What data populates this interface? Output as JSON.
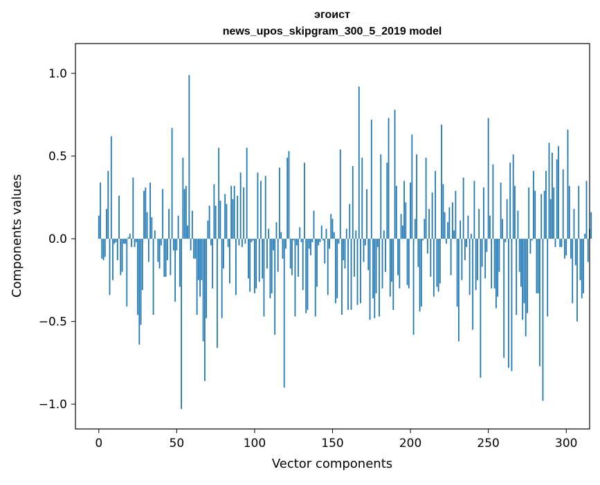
{
  "chart_data": {
    "type": "bar",
    "title": "эгоист",
    "subtitle": "news_upos_skipgram_300_5_2019 model",
    "xlabel": "Vector components",
    "ylabel": "Components values",
    "xlim": [
      -15,
      315
    ],
    "ylim": [
      -1.15,
      1.18
    ],
    "x_ticks": [
      0,
      50,
      100,
      150,
      200,
      250,
      300
    ],
    "x_tick_labels": [
      "0",
      "50",
      "100",
      "150",
      "200",
      "250",
      "300"
    ],
    "y_ticks": [
      1.0,
      0.5,
      0.0,
      -0.5,
      -1.0
    ],
    "y_tick_labels": [
      "1.0",
      "0.5",
      "0.0",
      "−0.5",
      "−1.0"
    ],
    "bar_color": "#1f77b4",
    "grid": false,
    "values": [
      0.14,
      0.34,
      -0.12,
      -0.13,
      -0.11,
      0.18,
      0.41,
      -0.34,
      0.62,
      -0.25,
      -0.03,
      -0.02,
      -0.13,
      0.26,
      -0.22,
      -0.2,
      -0.03,
      -0.03,
      -0.41,
      0.01,
      0.03,
      -0.05,
      0.37,
      -0.05,
      -0.02,
      -0.46,
      -0.64,
      -0.52,
      -0.31,
      0.29,
      0.31,
      0.16,
      -0.14,
      0.34,
      0.13,
      -0.46,
      0.05,
      0.0,
      -0.14,
      -0.18,
      -0.04,
      0.3,
      -0.23,
      -0.23,
      -0.13,
      0.18,
      -0.22,
      0.67,
      -0.07,
      -0.38,
      -0.07,
      0.14,
      -0.29,
      -1.03,
      0.49,
      0.3,
      0.32,
      0.08,
      0.99,
      -0.07,
      0.17,
      -0.12,
      -0.12,
      -0.46,
      -0.25,
      -0.35,
      -0.25,
      -0.62,
      -0.86,
      -0.48,
      0.11,
      0.2,
      -0.04,
      -0.3,
      0.33,
      0.2,
      -0.66,
      0.55,
      0.23,
      -0.48,
      -0.18,
      0.27,
      0.21,
      -0.05,
      -0.27,
      0.32,
      0.24,
      0.32,
      -0.34,
      0.26,
      -0.04,
      0.4,
      -0.05,
      0.31,
      -0.03,
      0.55,
      -0.24,
      -0.32,
      -0.02,
      -0.01,
      -0.33,
      -0.3,
      0.4,
      -0.26,
      0.35,
      -0.24,
      -0.47,
      0.38,
      -0.18,
      0.06,
      -0.36,
      -0.33,
      -0.07,
      -0.58,
      0.1,
      -0.2,
      0.43,
      0.04,
      -0.12,
      -0.9,
      -0.06,
      0.49,
      0.53,
      -0.18,
      -0.22,
      -0.01,
      -0.47,
      -0.04,
      -0.23,
      0.07,
      -0.02,
      -0.31,
      0.46,
      -0.45,
      -0.43,
      -0.06,
      -0.1,
      -0.02,
      0.17,
      -0.47,
      -0.29,
      -0.04,
      -0.02,
      0.08,
      -0.01,
      -0.15,
      0.06,
      -0.34,
      -0.06,
      0.15,
      0.12,
      0.04,
      -0.39,
      -0.36,
      -0.03,
      0.54,
      -0.46,
      -0.13,
      -0.18,
      0.06,
      -0.43,
      0.21,
      -0.43,
      0.44,
      -0.23,
      0.05,
      -0.4,
      0.92,
      -0.39,
      0.49,
      -0.14,
      -0.04,
      0.3,
      -0.19,
      -0.49,
      0.72,
      -0.36,
      -0.48,
      -0.33,
      -0.05,
      -0.47,
      0.51,
      -0.3,
      0.05,
      -0.2,
      0.46,
      0.73,
      -0.35,
      -0.26,
      -0.43,
      0.78,
      0.32,
      -0.22,
      -0.3,
      0.15,
      0.08,
      0.35,
      0.22,
      -0.28,
      -0.3,
      0.34,
      0.63,
      -0.58,
      0.12,
      0.51,
      -0.17,
      -0.44,
      -0.41,
      -0.01,
      0.12,
      0.49,
      -0.09,
      0.18,
      -0.23,
      0.28,
      -0.35,
      0.41,
      -0.29,
      -0.32,
      -0.27,
      0.69,
      0.33,
      0.16,
      -0.03,
      0.1,
      0.19,
      -0.22,
      0.22,
      0.05,
      0.29,
      -0.41,
      -0.62,
      0.11,
      -0.25,
      0.37,
      -0.13,
      -0.05,
      0.14,
      -0.34,
      0.03,
      -0.55,
      0.35,
      -0.31,
      -0.25,
      0.18,
      -0.84,
      -0.17,
      0.31,
      -0.24,
      -0.08,
      0.73,
      0.14,
      -0.3,
      0.45,
      -0.3,
      -0.42,
      -0.35,
      -0.2,
      0.34,
      0.12,
      -0.72,
      -0.02,
      0.24,
      -0.78,
      0.46,
      -0.8,
      0.51,
      0.32,
      -0.46,
      0.17,
      -0.2,
      -0.29,
      -0.49,
      -0.39,
      -0.59,
      -0.45,
      0.31,
      -0.09,
      -0.01,
      0.41,
      0.29,
      -0.33,
      -0.33,
      -0.77,
      0.27,
      -0.98,
      0.29,
      0.41,
      -0.47,
      0.58,
      0.24,
      0.52,
      0.31,
      -0.05,
      0.48,
      0.56,
      -0.05,
      -0.05,
      0.42,
      -0.12,
      -0.1,
      0.66,
      0.32,
      -0.12,
      -0.39,
      0.18,
      -0.16,
      -0.5,
      0.32,
      -0.25,
      -0.36,
      -0.33,
      0.03,
      0.35,
      -0.14,
      0.06,
      0.16
    ]
  }
}
